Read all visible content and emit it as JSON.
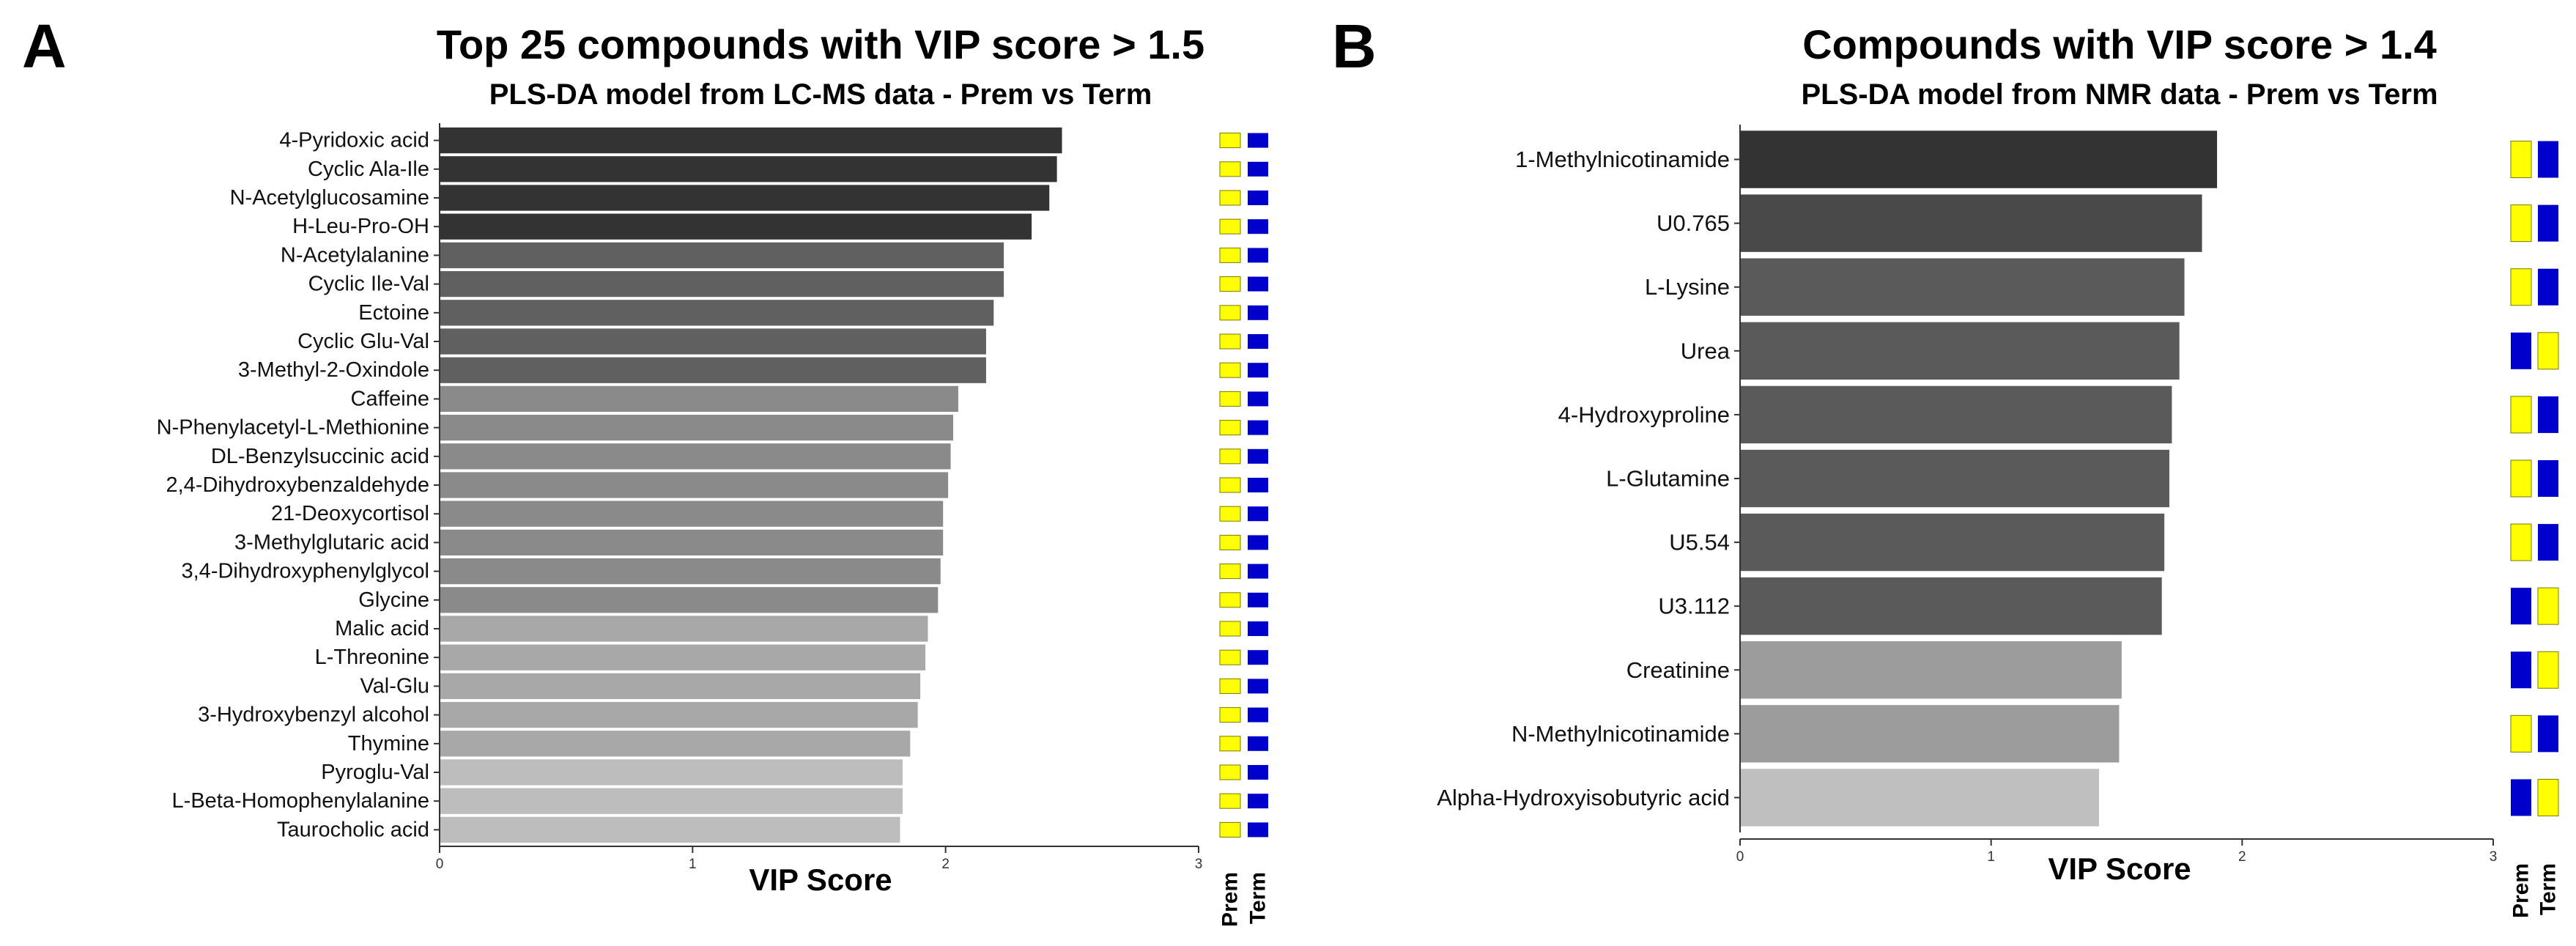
{
  "chart_data": [
    {
      "type": "bar",
      "orientation": "horizontal",
      "panel": "A",
      "title": "Top 25 compounds with VIP score > 1.5",
      "subtitle": "PLS-DA model from LC-MS data - Prem vs Term",
      "xlabel": "VIP Score",
      "ylabel": "",
      "xlim": [
        0,
        3
      ],
      "xticks": [
        "0",
        "1",
        "2",
        "3"
      ],
      "grid": false,
      "categories": [
        "4-Pyridoxic acid",
        "Cyclic Ala-Ile",
        "N-Acetylglucosamine",
        "H-Leu-Pro-OH",
        "N-Acetylalanine",
        "Cyclic Ile-Val",
        "Ectoine",
        "Cyclic Glu-Val",
        "3-Methyl-2-Oxindole",
        "Caffeine",
        "N-Phenylacetyl-L-Methionine",
        "DL-Benzylsuccinic acid",
        "2,4-Dihydroxybenzaldehyde",
        "21-Deoxycortisol",
        "3-Methylglutaric acid",
        "3,4-Dihydroxyphenylglycol",
        "Glycine",
        "Malic acid",
        "L-Threonine",
        "Val-Glu",
        "3-Hydroxybenzyl alcohol",
        "Thymine",
        "Pyroglu-Val",
        "L-Beta-Homophenylalanine",
        "Taurocholic acid"
      ],
      "values": [
        2.46,
        2.44,
        2.41,
        2.34,
        2.23,
        2.23,
        2.19,
        2.16,
        2.16,
        2.05,
        2.03,
        2.02,
        2.01,
        1.99,
        1.99,
        1.98,
        1.97,
        1.93,
        1.92,
        1.9,
        1.89,
        1.86,
        1.83,
        1.83,
        1.82
      ],
      "bar_colors": [
        "#333333",
        "#333333",
        "#333333",
        "#333333",
        "#606060",
        "#606060",
        "#606060",
        "#606060",
        "#606060",
        "#8a8a8a",
        "#8a8a8a",
        "#8a8a8a",
        "#8a8a8a",
        "#8a8a8a",
        "#8a8a8a",
        "#8a8a8a",
        "#8a8a8a",
        "#a8a8a8",
        "#a8a8a8",
        "#a8a8a8",
        "#a8a8a8",
        "#a8a8a8",
        "#bdbdbd",
        "#bdbdbd",
        "#bdbdbd"
      ],
      "heatmap": {
        "groups": [
          "Prem",
          "Term"
        ],
        "high_color": "#ffff00",
        "low_color": "#0000cc",
        "prem_high": [
          true,
          true,
          true,
          true,
          true,
          true,
          true,
          true,
          true,
          true,
          true,
          true,
          true,
          true,
          true,
          true,
          true,
          true,
          true,
          true,
          true,
          true,
          true,
          true,
          true
        ]
      }
    },
    {
      "type": "bar",
      "orientation": "horizontal",
      "panel": "B",
      "title": "Compounds with VIP score > 1.4",
      "subtitle": "PLS-DA model from NMR data - Prem vs Term",
      "xlabel": "VIP Score",
      "ylabel": "",
      "xlim": [
        0,
        3
      ],
      "xticks": [
        "0",
        "1",
        "2",
        "3"
      ],
      "grid": false,
      "categories": [
        "1-Methylnicotinamide",
        "U0.765",
        "L-Lysine",
        "Urea",
        "4-Hydroxyproline",
        "L-Glutamine",
        "U5.54",
        "U3.112",
        "Creatinine",
        "N-Methylnicotinamide",
        "Alpha-Hydroxyisobutyric acid"
      ],
      "values": [
        1.9,
        1.84,
        1.77,
        1.75,
        1.72,
        1.71,
        1.69,
        1.68,
        1.52,
        1.51,
        1.43
      ],
      "bar_colors": [
        "#333333",
        "#494949",
        "#5a5a5a",
        "#5a5a5a",
        "#5a5a5a",
        "#5a5a5a",
        "#5a5a5a",
        "#5a5a5a",
        "#9c9c9c",
        "#9c9c9c",
        "#bfbfbf"
      ],
      "heatmap": {
        "groups": [
          "Prem",
          "Term"
        ],
        "high_color": "#ffff00",
        "low_color": "#0000cc",
        "prem_high": [
          true,
          true,
          true,
          false,
          true,
          true,
          true,
          false,
          false,
          true,
          false
        ]
      }
    }
  ]
}
